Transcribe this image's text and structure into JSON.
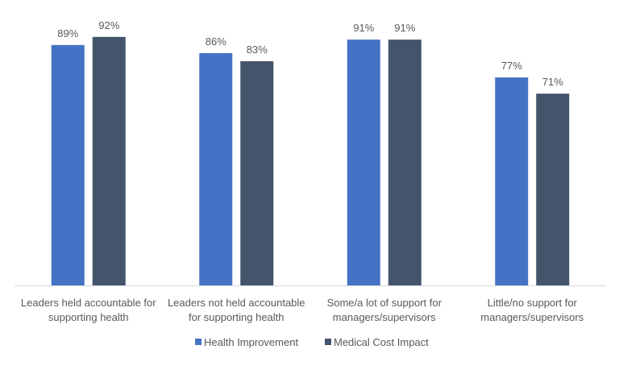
{
  "chart_data": {
    "type": "bar",
    "title": "",
    "xlabel": "",
    "ylabel": "",
    "ylim": [
      0,
      100
    ],
    "grid": false,
    "legend_position": "bottom",
    "categories": [
      [
        "Leaders held accountable for",
        "supporting health"
      ],
      [
        "Leaders not held accountable",
        "for supporting health"
      ],
      [
        "Some/a lot of support for",
        "managers/supervisors"
      ],
      [
        "Little/no support for",
        "managers/supervisors"
      ]
    ],
    "series": [
      {
        "name": "Health Improvement",
        "color": "#4472C4",
        "values": [
          89,
          86,
          91,
          77
        ],
        "labels": [
          "89%",
          "86%",
          "91%",
          "77%"
        ]
      },
      {
        "name": "Medical Cost Impact",
        "color": "#44546A",
        "values": [
          92,
          83,
          91,
          71
        ],
        "labels": [
          "92%",
          "83%",
          "91%",
          "71%"
        ]
      }
    ]
  }
}
